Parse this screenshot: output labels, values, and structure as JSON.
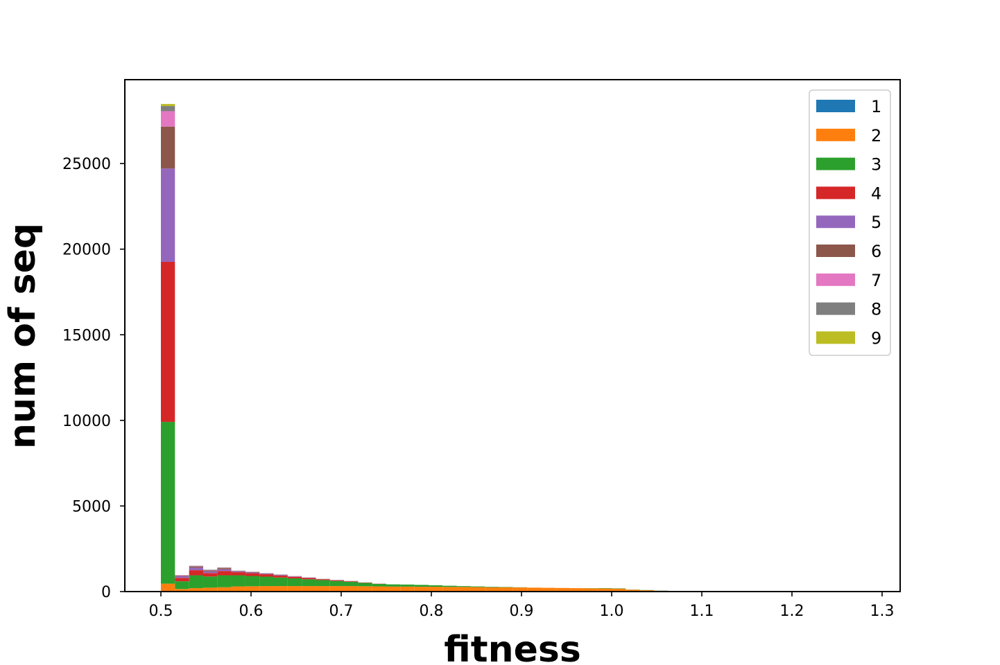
{
  "chart_data": {
    "type": "bar",
    "subtype": "stacked-histogram",
    "title": "",
    "xlabel": "fitness",
    "ylabel": "num of seq",
    "xlim": [
      0.46,
      1.32
    ],
    "ylim": [
      0,
      29900
    ],
    "xticks": [
      0.5,
      0.6,
      0.7,
      0.8,
      0.9,
      1.0,
      1.1,
      1.2,
      1.3
    ],
    "xtick_labels": [
      "0.5",
      "0.6",
      "0.7",
      "0.8",
      "0.9",
      "1.0",
      "1.1",
      "1.2",
      "1.3"
    ],
    "yticks": [
      0,
      5000,
      10000,
      15000,
      20000,
      25000
    ],
    "ytick_labels": [
      "0",
      "5000",
      "10000",
      "15000",
      "20000",
      "25000"
    ],
    "bin_edges": [
      0.5,
      0.5156,
      0.5313,
      0.5469,
      0.5625,
      0.5781,
      0.5938,
      0.6094,
      0.625,
      0.6406,
      0.6563,
      0.6719,
      0.6875,
      0.7031,
      0.7188,
      0.7344,
      0.75,
      0.7656,
      0.7813,
      0.7969,
      0.8125,
      0.8281,
      0.8438,
      0.8594,
      0.875,
      0.8906,
      0.9063,
      0.9219,
      0.9375,
      0.9531,
      0.9688,
      0.9844,
      1.0,
      1.0156,
      1.0313,
      1.0469,
      1.0625,
      1.0781,
      1.0938,
      1.1094,
      1.125,
      1.1406,
      1.1563,
      1.1719,
      1.1875,
      1.2031,
      1.2188,
      1.2344,
      1.25,
      1.2656,
      1.2813,
      1.2969
    ],
    "legend": {
      "position": "upper right",
      "entries": [
        "1",
        "2",
        "3",
        "4",
        "5",
        "6",
        "7",
        "8",
        "9"
      ]
    },
    "grid": false,
    "series": [
      {
        "name": "1",
        "color": "#1f77b4",
        "values": [
          10,
          0,
          0,
          0,
          0,
          0,
          0,
          0,
          0,
          0,
          0,
          0,
          0,
          0,
          0,
          0,
          0,
          0,
          0,
          0,
          0,
          0,
          0,
          0,
          0,
          0,
          0,
          0,
          0,
          0,
          0,
          0,
          0,
          0,
          0,
          0,
          0,
          0,
          0,
          0,
          0,
          0,
          0,
          0,
          0,
          0,
          0,
          0,
          0,
          0,
          0
        ]
      },
      {
        "name": "2",
        "color": "#ff7f0e",
        "values": [
          450,
          150,
          200,
          230,
          250,
          300,
          310,
          320,
          320,
          320,
          320,
          320,
          320,
          320,
          310,
          300,
          290,
          290,
          280,
          280,
          270,
          270,
          260,
          250,
          250,
          240,
          230,
          220,
          210,
          200,
          190,
          180,
          170,
          110,
          80,
          50,
          30,
          0,
          0,
          0,
          0,
          0,
          0,
          0,
          0,
          0,
          0,
          0,
          0,
          0,
          0
        ]
      },
      {
        "name": "3",
        "color": "#2ca02c",
        "values": [
          9450,
          450,
          750,
          650,
          700,
          650,
          600,
          550,
          500,
          450,
          400,
          350,
          300,
          250,
          200,
          150,
          130,
          120,
          110,
          90,
          70,
          50,
          40,
          30,
          20,
          10,
          0,
          0,
          0,
          0,
          10,
          20,
          20,
          10,
          10,
          10,
          10,
          0,
          0,
          0,
          0,
          0,
          0,
          0,
          0,
          0,
          0,
          0,
          0,
          0,
          0
        ]
      },
      {
        "name": "4",
        "color": "#d62728",
        "values": [
          9350,
          200,
          300,
          200,
          250,
          180,
          160,
          140,
          110,
          90,
          70,
          50,
          40,
          30,
          20,
          10,
          0,
          0,
          0,
          0,
          0,
          0,
          0,
          0,
          0,
          0,
          0,
          0,
          0,
          0,
          0,
          0,
          0,
          0,
          0,
          0,
          0,
          0,
          0,
          0,
          0,
          0,
          0,
          0,
          0,
          0,
          0,
          0,
          0,
          0,
          0
        ]
      },
      {
        "name": "5",
        "color": "#9467bd",
        "values": [
          5450,
          100,
          150,
          100,
          100,
          40,
          40,
          30,
          30,
          20,
          20,
          10,
          10,
          10,
          0,
          0,
          0,
          0,
          0,
          0,
          0,
          0,
          0,
          0,
          0,
          0,
          0,
          0,
          0,
          0,
          0,
          0,
          0,
          0,
          0,
          0,
          0,
          0,
          0,
          0,
          0,
          0,
          0,
          0,
          0,
          0,
          0,
          0,
          0,
          0,
          0
        ]
      },
      {
        "name": "6",
        "color": "#8c564b",
        "values": [
          2450,
          30,
          70,
          60,
          70,
          30,
          30,
          20,
          20,
          20,
          10,
          10,
          10,
          10,
          0,
          0,
          0,
          0,
          0,
          0,
          0,
          0,
          0,
          0,
          0,
          0,
          0,
          0,
          0,
          0,
          0,
          0,
          0,
          0,
          0,
          0,
          0,
          0,
          0,
          0,
          0,
          0,
          0,
          0,
          0,
          0,
          0,
          0,
          0,
          0,
          0
        ]
      },
      {
        "name": "7",
        "color": "#e377c2",
        "values": [
          900,
          20,
          20,
          20,
          20,
          10,
          10,
          10,
          10,
          10,
          0,
          0,
          0,
          0,
          0,
          0,
          0,
          0,
          0,
          0,
          0,
          0,
          0,
          0,
          0,
          0,
          0,
          0,
          0,
          0,
          0,
          0,
          0,
          0,
          0,
          0,
          0,
          0,
          0,
          0,
          0,
          0,
          0,
          0,
          0,
          0,
          0,
          0,
          0,
          0,
          0
        ]
      },
      {
        "name": "8",
        "color": "#7f7f7f",
        "values": [
          300,
          10,
          20,
          20,
          20,
          10,
          10,
          10,
          10,
          0,
          0,
          0,
          0,
          0,
          0,
          0,
          0,
          0,
          0,
          0,
          0,
          0,
          0,
          0,
          0,
          0,
          0,
          0,
          0,
          0,
          0,
          0,
          0,
          0,
          0,
          0,
          0,
          0,
          0,
          0,
          0,
          0,
          0,
          0,
          0,
          0,
          0,
          0,
          0,
          0,
          0
        ]
      },
      {
        "name": "9",
        "color": "#bcbd22",
        "values": [
          120,
          0,
          0,
          0,
          0,
          0,
          0,
          0,
          0,
          0,
          0,
          0,
          0,
          0,
          0,
          0,
          0,
          0,
          0,
          0,
          0,
          0,
          0,
          0,
          0,
          0,
          0,
          0,
          0,
          0,
          0,
          0,
          0,
          0,
          0,
          0,
          0,
          0,
          0,
          0,
          0,
          0,
          0,
          0,
          0,
          0,
          0,
          0,
          0,
          0,
          0
        ]
      }
    ]
  }
}
